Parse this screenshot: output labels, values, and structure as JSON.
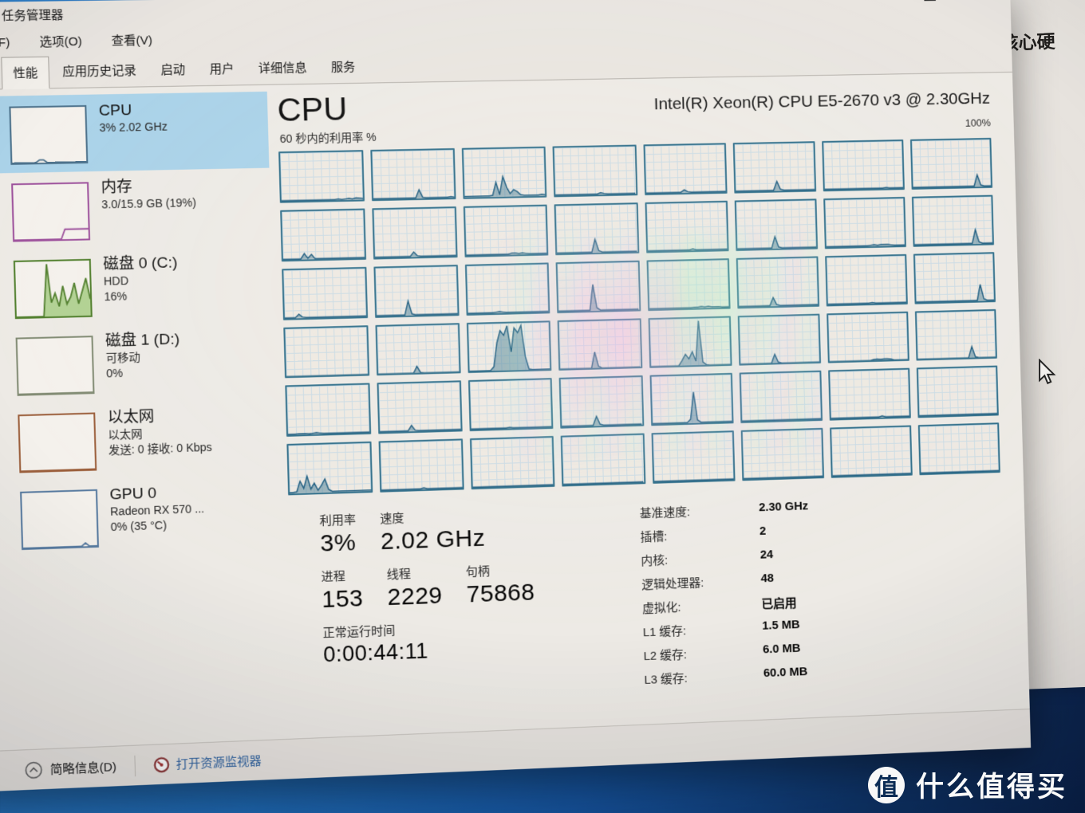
{
  "window": {
    "title": "任务管理器",
    "menu": [
      {
        "id": "file",
        "label": "文件(F)"
      },
      {
        "id": "options",
        "label": "选项(O)"
      },
      {
        "id": "view",
        "label": "查看(V)"
      }
    ],
    "tabs": [
      {
        "id": "processes",
        "label": "进程",
        "selected": false
      },
      {
        "id": "performance",
        "label": "性能",
        "selected": true
      },
      {
        "id": "app-history",
        "label": "应用历史记录",
        "selected": false
      },
      {
        "id": "startup",
        "label": "启动",
        "selected": false
      },
      {
        "id": "users",
        "label": "用户",
        "selected": false
      },
      {
        "id": "details",
        "label": "详细信息",
        "selected": false
      },
      {
        "id": "services",
        "label": "服务",
        "selected": false
      }
    ]
  },
  "sidebar": {
    "items": [
      {
        "id": "cpu",
        "title": "CPU",
        "lines": [
          "3% 2.02 GHz"
        ],
        "selected": true,
        "color": "#4a708a",
        "spark": "cpu",
        "spark_fill": false
      },
      {
        "id": "memory",
        "title": "内存",
        "lines": [
          "3.0/15.9 GB (19%)"
        ],
        "selected": false,
        "color": "#9c4f9b",
        "spark": "memory",
        "spark_fill": false
      },
      {
        "id": "disk0",
        "title": "磁盘 0 (C:)",
        "lines": [
          "HDD",
          "16%"
        ],
        "selected": false,
        "color": "#4e7d2a",
        "spark": "disk0",
        "spark_fill": true
      },
      {
        "id": "disk1",
        "title": "磁盘 1 (D:)",
        "lines": [
          "可移动",
          "0%"
        ],
        "selected": false,
        "color": "#808a72",
        "spark": "flat",
        "spark_fill": false
      },
      {
        "id": "ethernet",
        "title": "以太网",
        "lines": [
          "以太网",
          "发送: 0 接收: 0 Kbps"
        ],
        "selected": false,
        "color": "#9a5c38",
        "spark": "flat",
        "spark_fill": false
      },
      {
        "id": "gpu0",
        "title": "GPU 0",
        "lines": [
          "Radeon RX 570 ...",
          "0% (35 °C)"
        ],
        "selected": false,
        "color": "#55799f",
        "spark": "gpu",
        "spark_fill": false
      }
    ]
  },
  "main": {
    "heading": "CPU",
    "cpu_name": "Intel(R) Xeon(R) CPU E5-2670 v3 @ 2.30GHz",
    "scale_label": "100%",
    "graph_caption": "60 秒内的利用率 %",
    "stats_left_rows": [
      [
        {
          "label": "利用率",
          "value": "3%"
        },
        {
          "label": "速度",
          "value": "2.02 GHz"
        }
      ],
      [
        {
          "label": "进程",
          "value": "153"
        },
        {
          "label": "线程",
          "value": "2229"
        },
        {
          "label": "句柄",
          "value": "75868"
        }
      ],
      [
        {
          "label": "正常运行时间",
          "value": "0:00:44:11",
          "uptime": true
        }
      ]
    ],
    "stats_right": [
      {
        "label": "基准速度:",
        "value": "2.30 GHz"
      },
      {
        "label": "插槽:",
        "value": "2"
      },
      {
        "label": "内核:",
        "value": "24"
      },
      {
        "label": "逻辑处理器:",
        "value": "48"
      },
      {
        "label": "虚拟化:",
        "value": "已启用"
      },
      {
        "label": "L1 缓存:",
        "value": "1.5 MB"
      },
      {
        "label": "L2 缓存:",
        "value": "6.0 MB"
      },
      {
        "label": "L3 缓存:",
        "value": "60.0 MB"
      }
    ]
  },
  "footer": {
    "details_toggle": "简略信息(D)",
    "resource_monitor": "打开资源监视器"
  },
  "background_window": {
    "fragment_text": "核心硬"
  },
  "watermark": {
    "logo_char": "值",
    "text": "什么值得买"
  },
  "colors": {
    "graph_border": "#2e6d89",
    "graph_line": "#1b5a7e",
    "graph_fill": "rgba(47,109,137,0.45)",
    "selected_item_bg": "#a9d2e9",
    "link": "#2b5f9e",
    "desktop_blue": "#1d6fc0",
    "disk_green_line": "#3f7a1f",
    "disk_green_fill": "rgba(122,182,72,0.55)"
  },
  "sidebar_sparklines": {
    "cpu": [
      0,
      0,
      0,
      0,
      0,
      0,
      0,
      5,
      5,
      0,
      0,
      0,
      0,
      0,
      0,
      0,
      0,
      0,
      0,
      0
    ],
    "memory": [
      0,
      0,
      0,
      0,
      0,
      0,
      0,
      0,
      0,
      0,
      0,
      0,
      0,
      18,
      18,
      18,
      18,
      18,
      18,
      18
    ],
    "disk0": [
      0,
      0,
      0,
      0,
      0,
      0,
      0,
      0,
      95,
      25,
      42,
      18,
      55,
      22,
      35,
      60,
      22,
      45,
      68,
      30
    ],
    "gpu": [
      0,
      0,
      0,
      0,
      0,
      0,
      0,
      0,
      0,
      0,
      0,
      0,
      0,
      0,
      0,
      0,
      6,
      0,
      0,
      0
    ],
    "flat": [
      0,
      0,
      0,
      0,
      0,
      0,
      0,
      0,
      0,
      0,
      0,
      0,
      0,
      0,
      0,
      0,
      0,
      0,
      0,
      0
    ]
  },
  "chart_data": {
    "type": "area",
    "title": "60 秒内的利用率 %",
    "ylabel": "利用率 %",
    "ylim": [
      0,
      100
    ],
    "x_span_seconds": 60,
    "grid": {
      "rows": 6,
      "cols": 8,
      "logical_processors": 48
    },
    "cores": [
      [
        1,
        1,
        1,
        1,
        1,
        1,
        1,
        1,
        1,
        1,
        1,
        1,
        1,
        1,
        1,
        1,
        2,
        1,
        2,
        3,
        2,
        4,
        3,
        2
      ],
      [
        1,
        1,
        1,
        1,
        1,
        1,
        1,
        1,
        1,
        1,
        1,
        1,
        1,
        18,
        2,
        1,
        1,
        1,
        1,
        1,
        1,
        1,
        2,
        1
      ],
      [
        2,
        2,
        2,
        2,
        2,
        2,
        2,
        2,
        3,
        30,
        4,
        42,
        20,
        6,
        14,
        10,
        3,
        2,
        2,
        2,
        2,
        2,
        3,
        2
      ],
      [
        1,
        1,
        1,
        1,
        1,
        1,
        1,
        1,
        1,
        1,
        1,
        1,
        1,
        4,
        2,
        1,
        1,
        1,
        1,
        1,
        1,
        1,
        1,
        1
      ],
      [
        1,
        1,
        1,
        1,
        1,
        1,
        1,
        1,
        1,
        1,
        1,
        6,
        2,
        1,
        1,
        1,
        1,
        1,
        1,
        1,
        1,
        1,
        1,
        1
      ],
      [
        1,
        1,
        1,
        1,
        1,
        1,
        1,
        1,
        1,
        1,
        1,
        1,
        20,
        3,
        1,
        1,
        1,
        1,
        1,
        1,
        1,
        1,
        1,
        1
      ],
      [
        1,
        1,
        1,
        1,
        1,
        1,
        1,
        1,
        1,
        1,
        1,
        1,
        1,
        1,
        1,
        1,
        1,
        1,
        2,
        1,
        1,
        1,
        1,
        1
      ],
      [
        1,
        1,
        1,
        1,
        1,
        1,
        1,
        1,
        1,
        1,
        1,
        1,
        1,
        1,
        1,
        1,
        1,
        1,
        1,
        25,
        3,
        1,
        1,
        1
      ],
      [
        1,
        1,
        1,
        1,
        1,
        1,
        12,
        2,
        10,
        1,
        1,
        1,
        1,
        1,
        1,
        1,
        1,
        1,
        1,
        1,
        1,
        1,
        1,
        1
      ],
      [
        1,
        1,
        1,
        1,
        1,
        1,
        1,
        1,
        1,
        1,
        1,
        10,
        2,
        1,
        1,
        1,
        1,
        1,
        1,
        1,
        1,
        1,
        1,
        1
      ],
      [
        1,
        1,
        1,
        1,
        1,
        1,
        1,
        1,
        1,
        1,
        1,
        1,
        1,
        3,
        3,
        2,
        3,
        2,
        1,
        1,
        1,
        1,
        1,
        1
      ],
      [
        1,
        1,
        1,
        1,
        1,
        1,
        1,
        1,
        1,
        1,
        1,
        28,
        4,
        1,
        1,
        1,
        1,
        1,
        1,
        1,
        1,
        1,
        1,
        1
      ],
      [
        1,
        1,
        1,
        1,
        1,
        1,
        1,
        1,
        1,
        1,
        1,
        1,
        1,
        3,
        1,
        1,
        1,
        1,
        1,
        1,
        1,
        1,
        1,
        1
      ],
      [
        1,
        1,
        1,
        1,
        1,
        1,
        1,
        1,
        1,
        1,
        1,
        25,
        3,
        1,
        1,
        1,
        1,
        1,
        1,
        1,
        1,
        1,
        1,
        1
      ],
      [
        1,
        1,
        1,
        1,
        1,
        1,
        1,
        1,
        1,
        1,
        1,
        1,
        1,
        2,
        3,
        2,
        3,
        3,
        3,
        2,
        1,
        1,
        1,
        1
      ],
      [
        1,
        1,
        1,
        1,
        1,
        1,
        1,
        1,
        1,
        1,
        1,
        1,
        1,
        1,
        1,
        1,
        1,
        1,
        30,
        4,
        1,
        1,
        1,
        1
      ],
      [
        1,
        1,
        1,
        1,
        8,
        2,
        1,
        1,
        1,
        1,
        1,
        1,
        1,
        1,
        1,
        1,
        1,
        1,
        1,
        1,
        1,
        1,
        1,
        1
      ],
      [
        1,
        1,
        1,
        1,
        1,
        1,
        1,
        1,
        1,
        30,
        3,
        1,
        1,
        1,
        1,
        1,
        1,
        1,
        1,
        1,
        1,
        1,
        1,
        1
      ],
      [
        1,
        1,
        1,
        1,
        1,
        1,
        1,
        1,
        2,
        3,
        2,
        1,
        1,
        1,
        1,
        1,
        1,
        1,
        1,
        1,
        1,
        1,
        1,
        1
      ],
      [
        1,
        1,
        1,
        1,
        1,
        1,
        1,
        1,
        1,
        1,
        55,
        6,
        1,
        1,
        1,
        1,
        1,
        1,
        1,
        1,
        1,
        1,
        1,
        1
      ],
      [
        1,
        1,
        1,
        1,
        1,
        1,
        1,
        1,
        1,
        1,
        1,
        1,
        1,
        2,
        2,
        3,
        2,
        3,
        2,
        2,
        2,
        1,
        1,
        1
      ],
      [
        1,
        1,
        1,
        1,
        1,
        1,
        1,
        1,
        1,
        1,
        18,
        3,
        1,
        1,
        1,
        1,
        1,
        1,
        1,
        1,
        1,
        1,
        1,
        1
      ],
      [
        1,
        1,
        1,
        1,
        1,
        1,
        1,
        1,
        1,
        1,
        1,
        1,
        1,
        2,
        1,
        1,
        1,
        1,
        1,
        1,
        1,
        1,
        1,
        1
      ],
      [
        1,
        1,
        1,
        1,
        1,
        1,
        1,
        1,
        1,
        1,
        1,
        1,
        1,
        1,
        1,
        1,
        1,
        1,
        1,
        35,
        4,
        1,
        1,
        1
      ],
      [
        1,
        1,
        1,
        1,
        1,
        1,
        1,
        1,
        1,
        1,
        1,
        1,
        1,
        1,
        1,
        1,
        1,
        1,
        1,
        1,
        1,
        1,
        1,
        1
      ],
      [
        1,
        1,
        1,
        1,
        1,
        1,
        1,
        1,
        1,
        1,
        1,
        15,
        2,
        1,
        1,
        1,
        1,
        1,
        1,
        1,
        1,
        1,
        1,
        1
      ],
      [
        2,
        2,
        2,
        2,
        2,
        2,
        2,
        10,
        60,
        85,
        75,
        95,
        40,
        90,
        80,
        95,
        30,
        3,
        2,
        2,
        2,
        2,
        2,
        2
      ],
      [
        1,
        1,
        1,
        1,
        1,
        1,
        1,
        1,
        1,
        1,
        35,
        5,
        1,
        1,
        1,
        1,
        1,
        1,
        1,
        1,
        1,
        1,
        1,
        1
      ],
      [
        1,
        1,
        1,
        1,
        1,
        1,
        1,
        1,
        1,
        12,
        25,
        15,
        30,
        10,
        95,
        8,
        2,
        1,
        1,
        1,
        1,
        1,
        1,
        1
      ],
      [
        1,
        1,
        1,
        1,
        1,
        1,
        1,
        1,
        1,
        1,
        20,
        3,
        1,
        1,
        1,
        1,
        1,
        1,
        1,
        1,
        1,
        1,
        1,
        1
      ],
      [
        1,
        1,
        1,
        1,
        1,
        1,
        1,
        1,
        1,
        1,
        1,
        1,
        1,
        3,
        4,
        3,
        4,
        4,
        3,
        1,
        1,
        1,
        1,
        1
      ],
      [
        1,
        1,
        1,
        1,
        1,
        1,
        1,
        1,
        1,
        1,
        1,
        1,
        1,
        1,
        1,
        1,
        25,
        3,
        1,
        1,
        1,
        1,
        1,
        1
      ],
      [
        1,
        1,
        1,
        2,
        2,
        2,
        1,
        2,
        3,
        2,
        1,
        1,
        1,
        1,
        1,
        1,
        1,
        1,
        1,
        1,
        1,
        1,
        1,
        1
      ],
      [
        1,
        1,
        1,
        1,
        1,
        1,
        1,
        1,
        1,
        12,
        2,
        1,
        1,
        1,
        1,
        1,
        1,
        1,
        1,
        1,
        1,
        1,
        1,
        1
      ],
      [
        1,
        1,
        1,
        1,
        1,
        1,
        1,
        1,
        1,
        1,
        1,
        2,
        1,
        1,
        1,
        1,
        1,
        1,
        1,
        1,
        1,
        1,
        1,
        1
      ],
      [
        1,
        1,
        1,
        1,
        1,
        1,
        1,
        1,
        1,
        1,
        20,
        3,
        1,
        1,
        1,
        1,
        1,
        1,
        1,
        1,
        1,
        1,
        1,
        1
      ],
      [
        1,
        1,
        1,
        1,
        1,
        1,
        1,
        1,
        1,
        1,
        1,
        8,
        65,
        6,
        1,
        1,
        1,
        1,
        1,
        1,
        1,
        1,
        1,
        1
      ],
      [
        1,
        1,
        1,
        1,
        1,
        1,
        1,
        1,
        1,
        1,
        1,
        1,
        1,
        1,
        1,
        1,
        1,
        1,
        1,
        1,
        1,
        1,
        1,
        1
      ],
      [
        1,
        1,
        1,
        1,
        1,
        1,
        1,
        1,
        1,
        1,
        1,
        1,
        1,
        1,
        1,
        3,
        1,
        1,
        1,
        1,
        1,
        1,
        1,
        1
      ],
      [
        1,
        1,
        1,
        1,
        1,
        1,
        1,
        1,
        1,
        1,
        1,
        1,
        1,
        1,
        1,
        1,
        1,
        1,
        1,
        1,
        1,
        1,
        1,
        1
      ],
      [
        2,
        2,
        3,
        25,
        10,
        35,
        8,
        20,
        5,
        15,
        28,
        6,
        2,
        2,
        2,
        2,
        2,
        2,
        2,
        2,
        2,
        2,
        2,
        2
      ],
      [
        1,
        1,
        1,
        1,
        1,
        1,
        1,
        1,
        1,
        1,
        1,
        1,
        3,
        1,
        1,
        1,
        1,
        1,
        1,
        1,
        1,
        1,
        1,
        1
      ],
      [
        1,
        1,
        1,
        1,
        1,
        1,
        1,
        1,
        1,
        1,
        1,
        1,
        1,
        1,
        1,
        1,
        1,
        1,
        1,
        1,
        1,
        1,
        1,
        1
      ],
      [
        1,
        1,
        1,
        1,
        1,
        1,
        1,
        1,
        1,
        1,
        1,
        1,
        1,
        1,
        1,
        1,
        1,
        1,
        1,
        1,
        1,
        1,
        1,
        1
      ],
      [
        1,
        1,
        1,
        1,
        1,
        1,
        1,
        1,
        1,
        1,
        1,
        1,
        1,
        1,
        1,
        1,
        1,
        1,
        1,
        1,
        1,
        1,
        1,
        1
      ],
      [
        1,
        1,
        1,
        1,
        1,
        1,
        1,
        1,
        1,
        1,
        1,
        1,
        1,
        1,
        1,
        1,
        1,
        1,
        1,
        1,
        1,
        1,
        1,
        1
      ],
      [
        1,
        1,
        1,
        1,
        1,
        1,
        1,
        1,
        1,
        1,
        1,
        1,
        1,
        1,
        1,
        1,
        1,
        1,
        1,
        1,
        1,
        1,
        1,
        1
      ],
      [
        1,
        1,
        1,
        1,
        1,
        1,
        1,
        1,
        1,
        1,
        1,
        1,
        1,
        1,
        1,
        1,
        1,
        1,
        1,
        1,
        1,
        1,
        1,
        1
      ]
    ]
  }
}
